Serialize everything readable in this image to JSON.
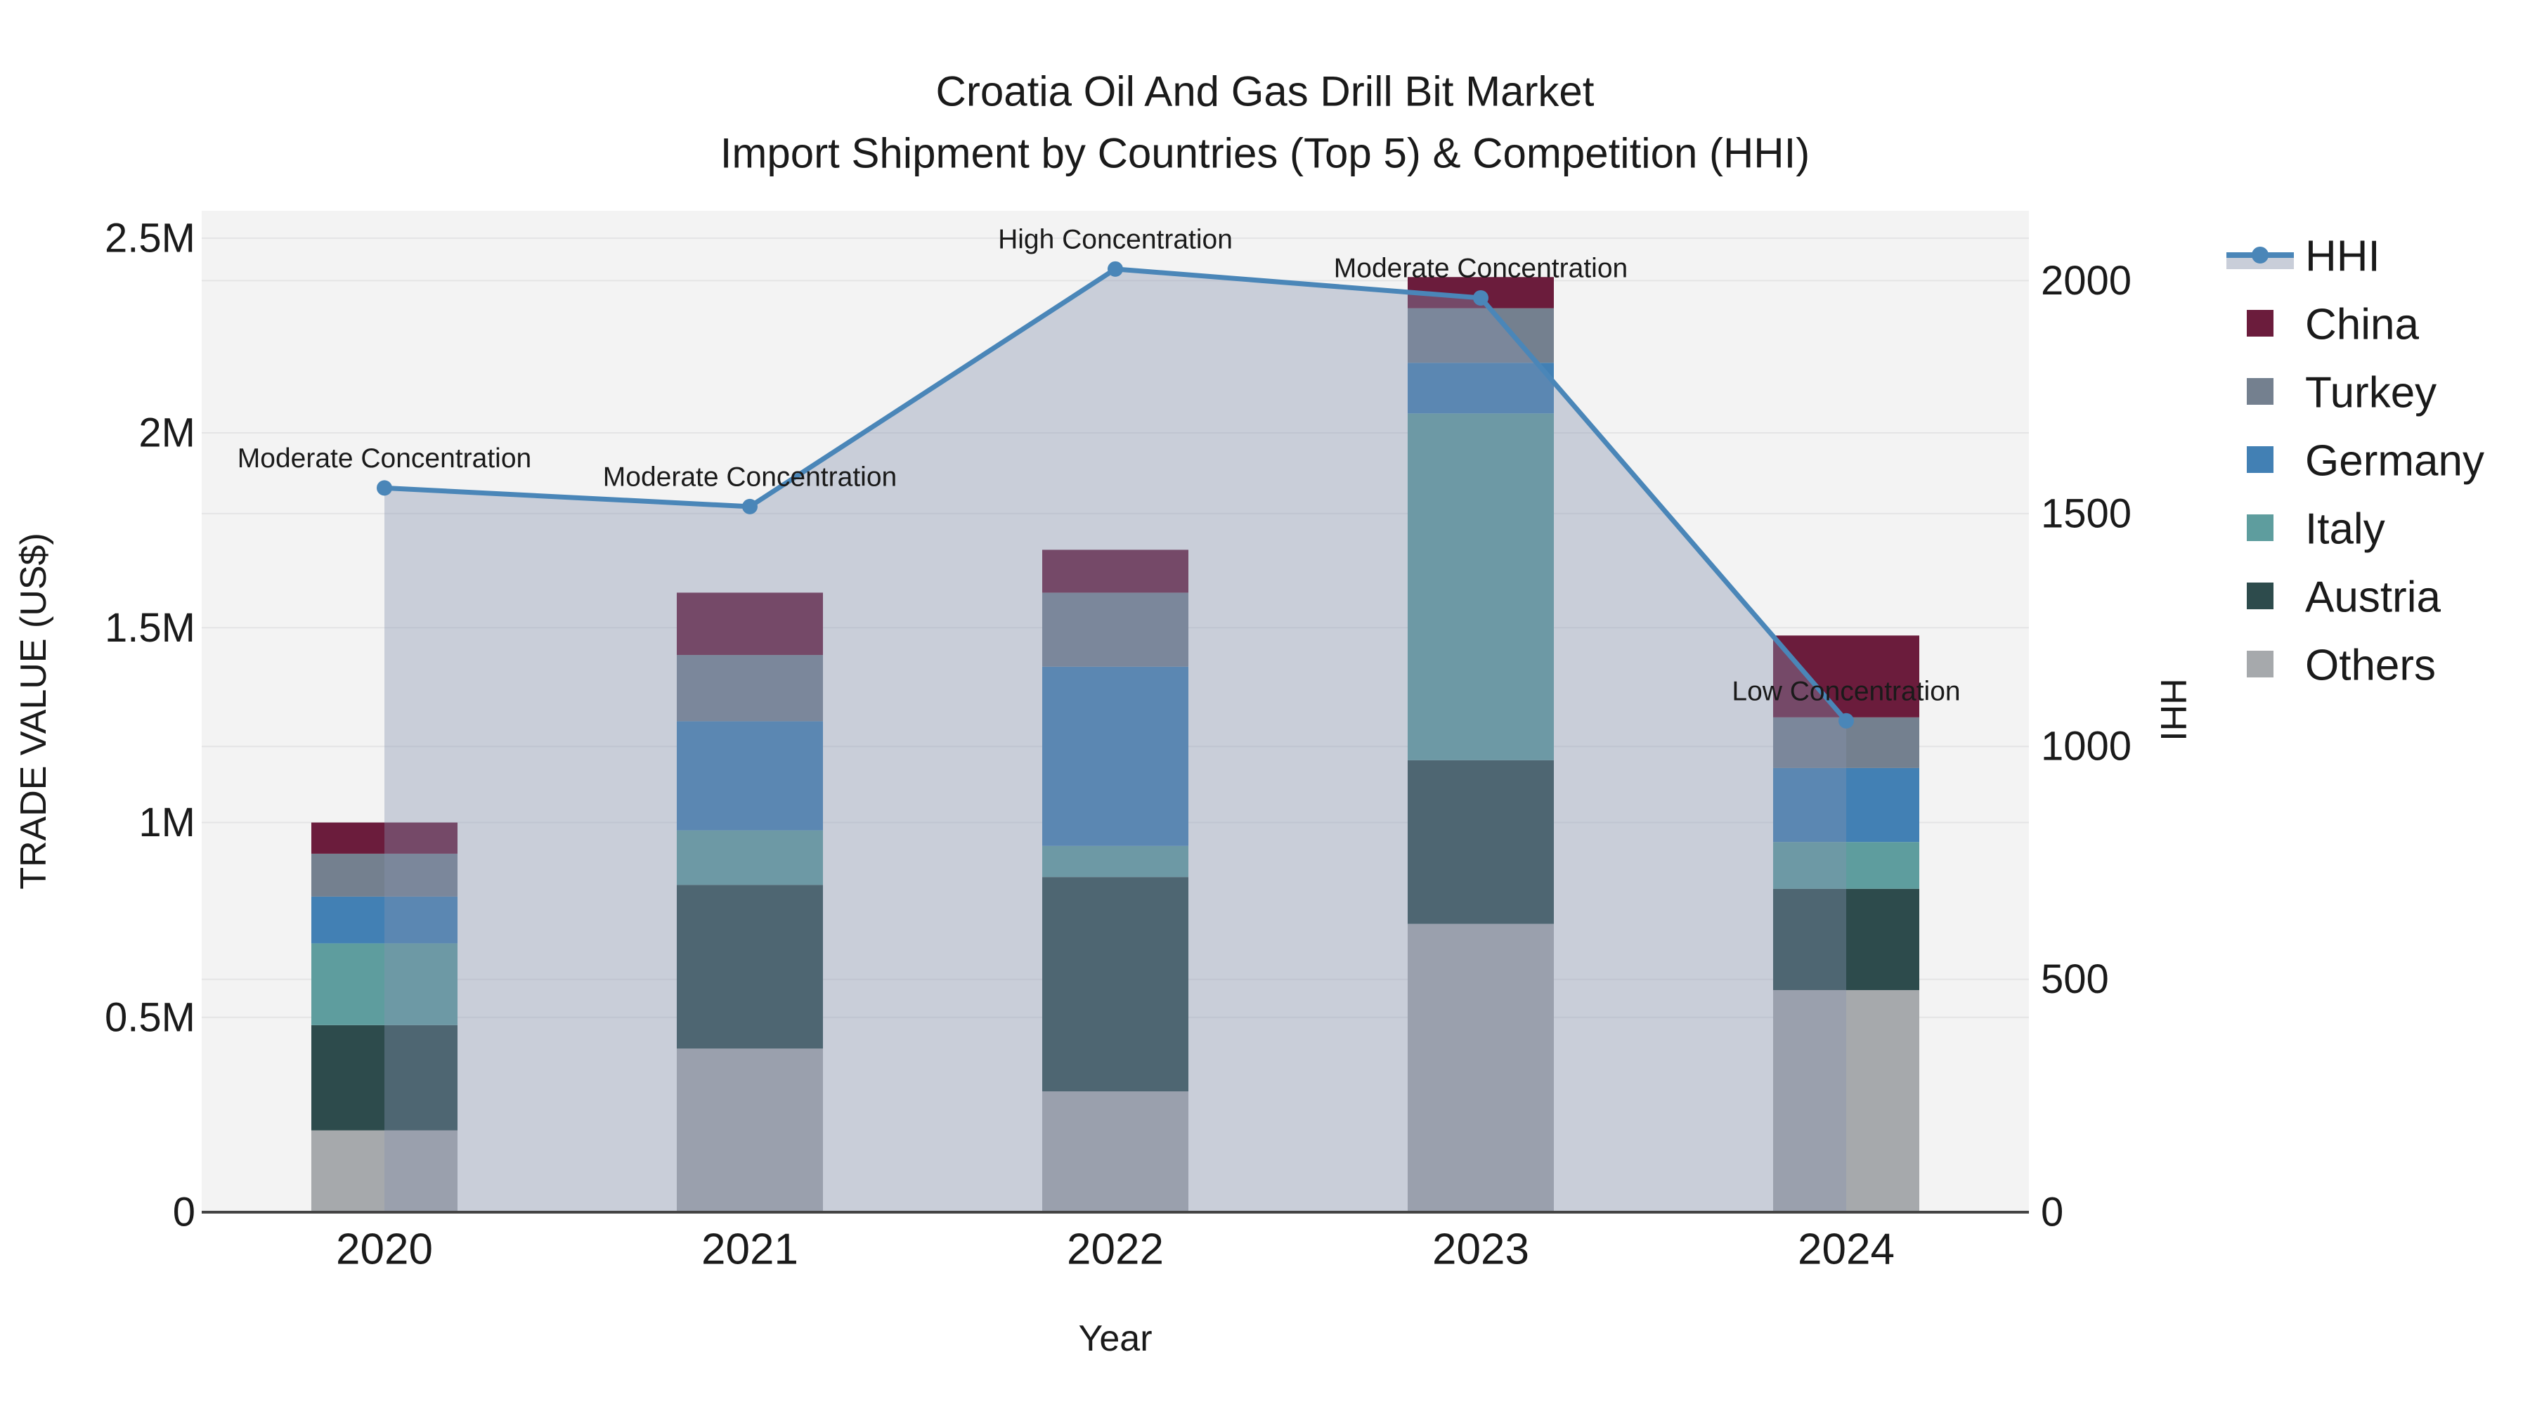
{
  "title": {
    "line1": "Croatia Oil And Gas Drill Bit Market",
    "line2": "Import Shipment by Countries (Top 5) & Competition (HHI)"
  },
  "chart_data": {
    "type": "bar+line",
    "subtype": "stacked-bar-with-secondary-line-area",
    "categories": [
      "2020",
      "2021",
      "2022",
      "2023",
      "2024"
    ],
    "xlabel": "Year",
    "ylabel_left": "TRADE VALUE (US$)",
    "ylabel_right": "HHI",
    "yticks_left": {
      "values": [
        0,
        500000,
        1000000,
        1500000,
        2000000,
        2500000
      ],
      "labels": [
        "0",
        "0.5M",
        "1M",
        "1.5M",
        "2M",
        "2.5M"
      ]
    },
    "yticks_right": {
      "values": [
        0,
        500,
        1000,
        1500,
        2000
      ],
      "labels": [
        "0",
        "500",
        "1000",
        "1500",
        "2000"
      ]
    },
    "ylim_left": [
      0,
      2570000
    ],
    "ylim_right": [
      0,
      2150
    ],
    "grid": true,
    "legend_position": "right",
    "series": [
      {
        "name": "Others",
        "color": "#a6a9ac",
        "values": [
          210000,
          420000,
          310000,
          740000,
          570000
        ]
      },
      {
        "name": "Austria",
        "color": "#2d4b4c",
        "values": [
          270000,
          420000,
          550000,
          420000,
          260000
        ]
      },
      {
        "name": "Italy",
        "color": "#5e9d9e",
        "values": [
          210000,
          140000,
          80000,
          890000,
          120000
        ]
      },
      {
        "name": "Germany",
        "color": "#4280b4",
        "values": [
          120000,
          280000,
          460000,
          130000,
          190000
        ]
      },
      {
        "name": "Turkey",
        "color": "#74808f",
        "values": [
          110000,
          170000,
          190000,
          140000,
          130000
        ]
      },
      {
        "name": "China",
        "color": "#6b1c3c",
        "values": [
          80000,
          160000,
          110000,
          80000,
          210000
        ]
      }
    ],
    "bar_totals": [
      1000000,
      1590000,
      1700000,
      2400000,
      1480000
    ],
    "line": {
      "name": "HHI",
      "color": "#4a86b8",
      "fill_color": "rgba(134,147,176,0.38)",
      "legend_band_color": "#c9ced9",
      "values": [
        1555,
        1515,
        2025,
        1963,
        1055
      ]
    },
    "annotations": [
      "Moderate Concentration",
      "Moderate Concentration",
      "High Concentration",
      "Moderate Concentration",
      "Low Concentration"
    ]
  },
  "legend": {
    "items": [
      {
        "label": "HHI",
        "type": "line"
      },
      {
        "label": "China",
        "type": "square"
      },
      {
        "label": "Turkey",
        "type": "square"
      },
      {
        "label": "Germany",
        "type": "square"
      },
      {
        "label": "Italy",
        "type": "square"
      },
      {
        "label": "Austria",
        "type": "square"
      },
      {
        "label": "Others",
        "type": "square"
      }
    ]
  },
  "colors": {
    "figure_bg": "#ffffff",
    "plot_bg": "#f3f3f3",
    "gridline": "#e4e4e5",
    "axis_line": "#444444",
    "text": "#1a1a1a",
    "annotation_text": "#000000"
  }
}
